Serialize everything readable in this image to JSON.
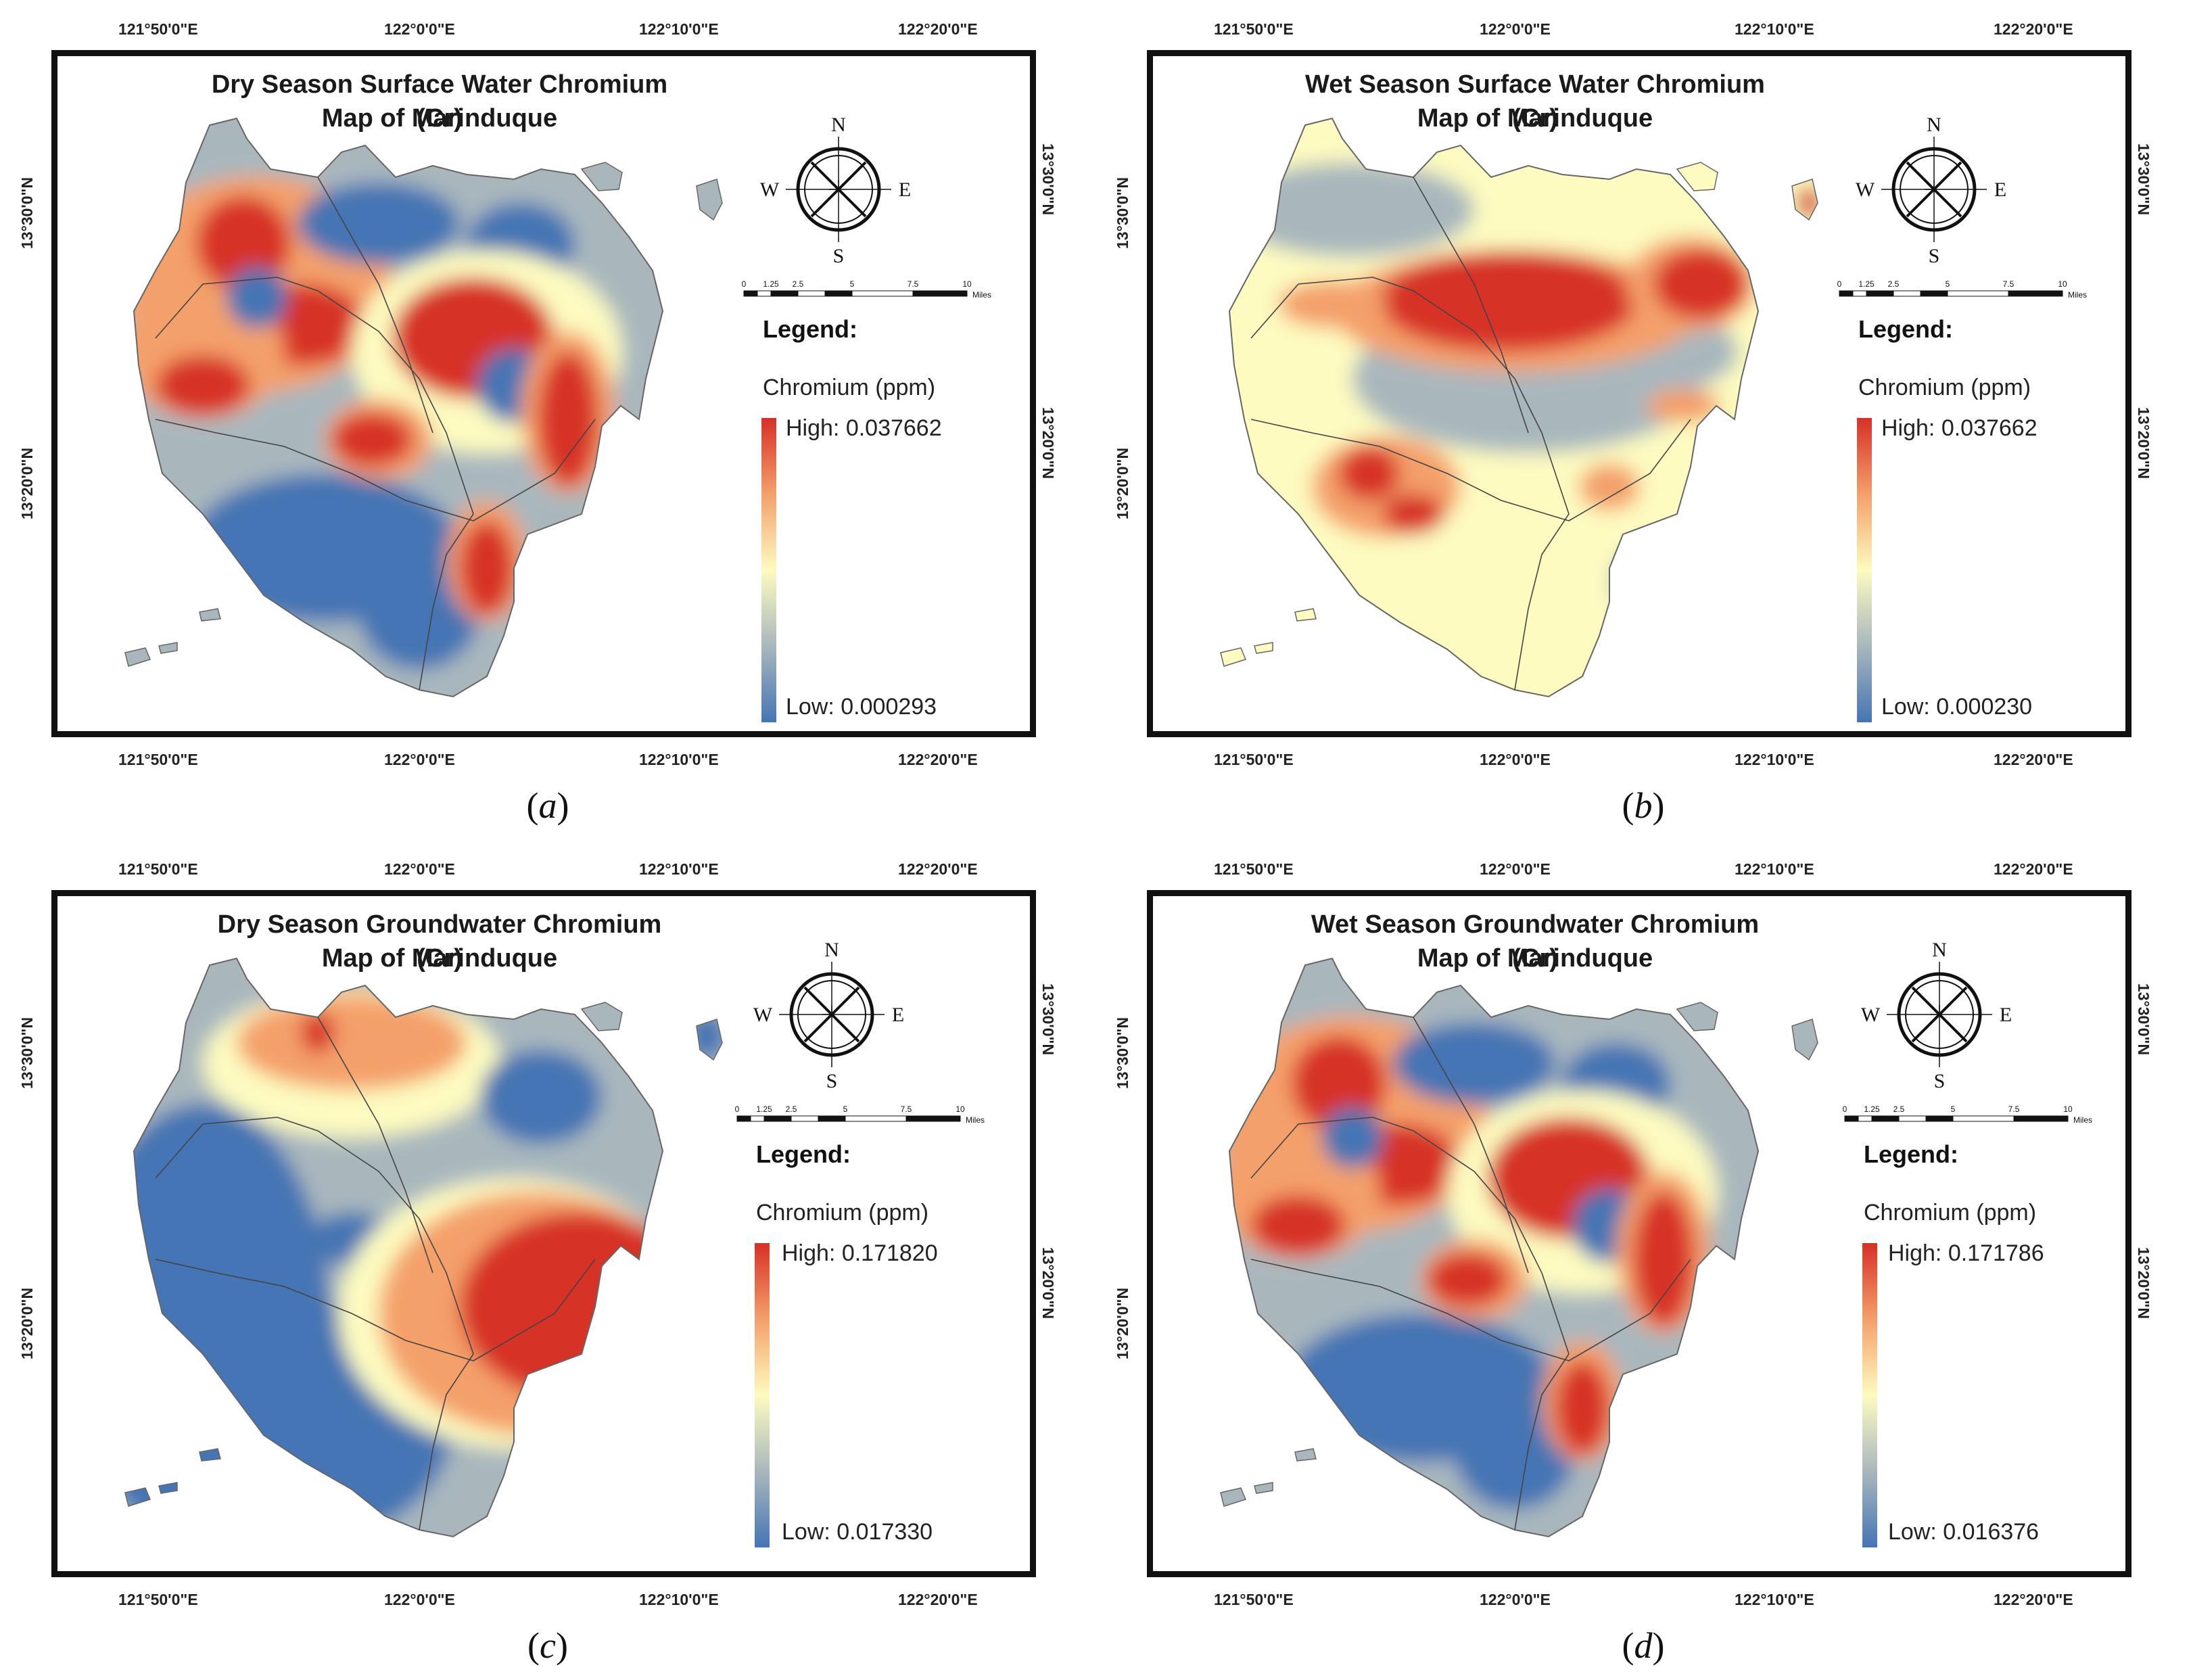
{
  "panels": [
    {
      "title_line1": "Dry Season Surface Water Chromium (Cr)",
      "title_line2": "Map of Marinduque",
      "legend_title": "Legend:",
      "legend_sub": "Chromium (ppm)",
      "high": "High: 0.037662",
      "low": "Low: 0.000293",
      "caption_letter": "a"
    },
    {
      "title_line1": "Wet Season Surface Water Chromium (Cr)",
      "title_line2": "Map of Marinduque",
      "legend_title": "Legend:",
      "legend_sub": "Chromium (ppm)",
      "high": "High: 0.037662",
      "low": "Low: 0.000230",
      "caption_letter": "b"
    },
    {
      "title_line1": "Dry Season Groundwater Chromium (Cr)",
      "title_line2": "Map of Marinduque",
      "legend_title": "Legend:",
      "legend_sub": "Chromium (ppm)",
      "high": "High: 0.171820",
      "low": "Low: 0.017330",
      "caption_letter": "c"
    },
    {
      "title_line1": "Wet Season Groundwater Chromium (Cr)",
      "title_line2": "Map of Marinduque",
      "legend_title": "Legend:",
      "legend_sub": "Chromium (ppm)",
      "high": "High: 0.171786",
      "low": "Low: 0.016376",
      "caption_letter": "d"
    }
  ],
  "axes": {
    "lon_ticks": [
      "121°50'0\"E",
      "122°0'0\"E",
      "122°10'0\"E",
      "122°20'0\"E"
    ],
    "lat_ticks": [
      "13°30'0\"N",
      "13°20'0\"N"
    ]
  },
  "compass": {
    "n": "N",
    "s": "S",
    "e": "E",
    "w": "W"
  },
  "scale": {
    "labels": [
      "0",
      "1.25",
      "2.5",
      "5",
      "7.5",
      "10"
    ],
    "unit": "Miles"
  },
  "colors": {
    "high": "#d73027",
    "mid_high": "#f4a06a",
    "mid": "#fdfbc0",
    "mid_low": "#a9b7bd",
    "low": "#4575b4"
  }
}
